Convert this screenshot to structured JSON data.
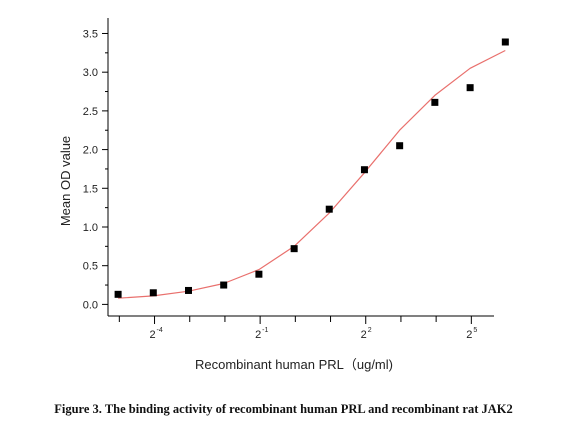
{
  "chart_data": {
    "type": "scatter",
    "ylabel": "Mean OD value",
    "xlabel": "Recombinant human PRL（ug/ml)",
    "x_scale": "log2",
    "xlim": [
      0.025,
      50
    ],
    "ylim": [
      -0.15,
      3.7
    ],
    "y_ticks": [
      0.0,
      0.5,
      1.0,
      1.5,
      2.0,
      2.5,
      3.0,
      3.5
    ],
    "y_tick_labels": [
      "0.0",
      "0.5",
      "1.0",
      "1.5",
      "2.0",
      "2.5",
      "3.0",
      "3.5"
    ],
    "x_tick_labels": [
      {
        "base": "2",
        "exp": "-4",
        "value": 0.0625
      },
      {
        "base": "2",
        "exp": "-1",
        "value": 0.5
      },
      {
        "base": "2",
        "exp": "2",
        "value": 4
      },
      {
        "base": "2",
        "exp": "5",
        "value": 32
      }
    ],
    "x_minor_tick_values": [
      0.03125,
      0.125,
      0.25,
      1,
      2,
      8,
      16
    ],
    "series": [
      {
        "type": "scatter",
        "marker": "square",
        "color": "#000000",
        "x": [
          0.0305,
          0.061,
          0.122,
          0.244,
          0.488,
          0.977,
          1.95,
          3.9,
          7.8,
          15.6,
          31.25,
          62.5
        ],
        "y": [
          0.13,
          0.15,
          0.18,
          0.25,
          0.39,
          0.72,
          1.23,
          1.74,
          2.05,
          2.61,
          2.8,
          3.39
        ]
      },
      {
        "type": "line",
        "fit": "sigmoid",
        "color": "#e9706d",
        "x": [
          0.0305,
          0.061,
          0.122,
          0.244,
          0.488,
          0.977,
          1.95,
          3.9,
          7.8,
          15.6,
          31.25,
          62.5
        ],
        "y": [
          0.08,
          0.11,
          0.17,
          0.27,
          0.45,
          0.75,
          1.18,
          1.7,
          2.25,
          2.7,
          3.05,
          3.28
        ]
      }
    ]
  },
  "caption": "Figure 3. The binding activity of recombinant human PRL and recombinant rat JAK2"
}
